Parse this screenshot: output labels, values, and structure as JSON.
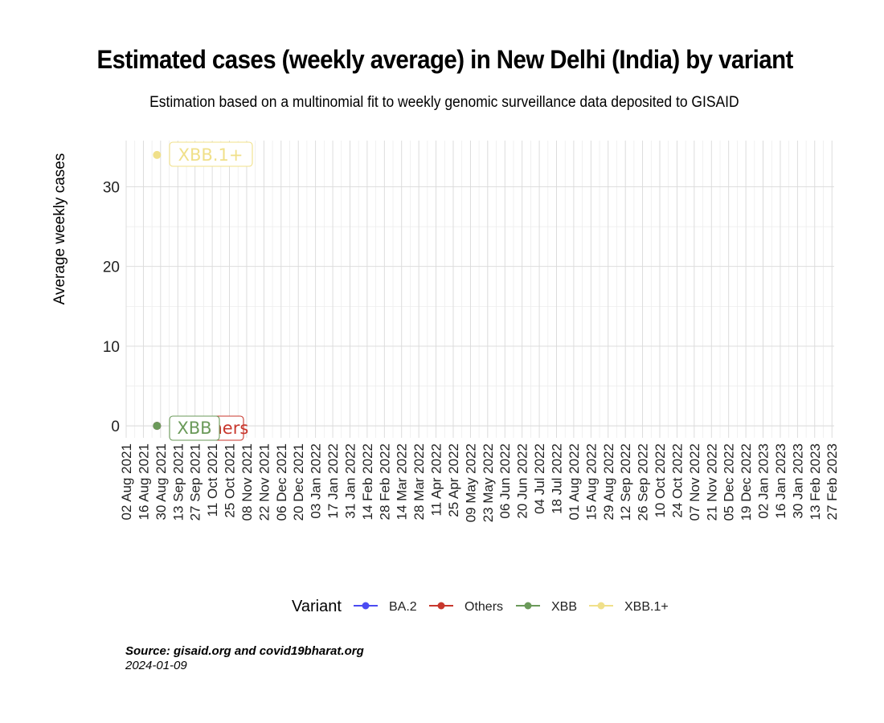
{
  "title": "Estimated cases (weekly average) in New Delhi (India) by variant",
  "subtitle": "Estimation based on a multinomial fit to weekly genomic surveillance data deposited to GISAID",
  "caption": {
    "source": "Source: gisaid.org and covid19bharat.org",
    "date": "2024-01-09"
  },
  "chart_data": {
    "type": "scatter",
    "ylabel": "Average weekly cases",
    "xlabel": "",
    "ylim": [
      -1.5,
      35.8
    ],
    "yticks": [
      0,
      10,
      20,
      30
    ],
    "x_tick_labels": [
      "02 Aug 2021",
      "16 Aug 2021",
      "30 Aug 2021",
      "13 Sep 2021",
      "27 Sep 2021",
      "11 Oct 2021",
      "25 Oct 2021",
      "08 Nov 2021",
      "22 Nov 2021",
      "06 Dec 2021",
      "20 Dec 2021",
      "03 Jan 2022",
      "17 Jan 2022",
      "31 Jan 2022",
      "14 Feb 2022",
      "28 Feb 2022",
      "14 Mar 2022",
      "28 Mar 2022",
      "11 Apr 2022",
      "25 Apr 2022",
      "09 May 2022",
      "23 May 2022",
      "06 Jun 2022",
      "20 Jun 2022",
      "04 Jul 2022",
      "18 Jul 2022",
      "01 Aug 2022",
      "15 Aug 2022",
      "29 Aug 2022",
      "12 Sep 2022",
      "26 Sep 2022",
      "10 Oct 2022",
      "24 Oct 2022",
      "07 Nov 2022",
      "21 Nov 2022",
      "05 Dec 2022",
      "19 Dec 2022",
      "02 Jan 2023",
      "16 Jan 2023",
      "30 Jan 2023",
      "13 Feb 2023",
      "27 Feb 2023"
    ],
    "grid": true,
    "legend": {
      "title": "Variant",
      "placement": "bottom"
    },
    "series": [
      {
        "name": "BA.2",
        "color": "#4b4bf2",
        "points": [
          {
            "x": "30 Aug 2021",
            "y": 0
          }
        ],
        "label": "BA.2"
      },
      {
        "name": "Others",
        "color": "#c8372d",
        "points": [
          {
            "x": "30 Aug 2021",
            "y": 0
          }
        ],
        "label": "Others"
      },
      {
        "name": "XBB",
        "color": "#6b9a5a",
        "points": [
          {
            "x": "30 Aug 2021",
            "y": 0
          }
        ],
        "label": "XBB"
      },
      {
        "name": "XBB.1+",
        "color": "#f0e08a",
        "points": [
          {
            "x": "30 Aug 2021",
            "y": 34
          }
        ],
        "label": "XBB.1+"
      }
    ]
  }
}
